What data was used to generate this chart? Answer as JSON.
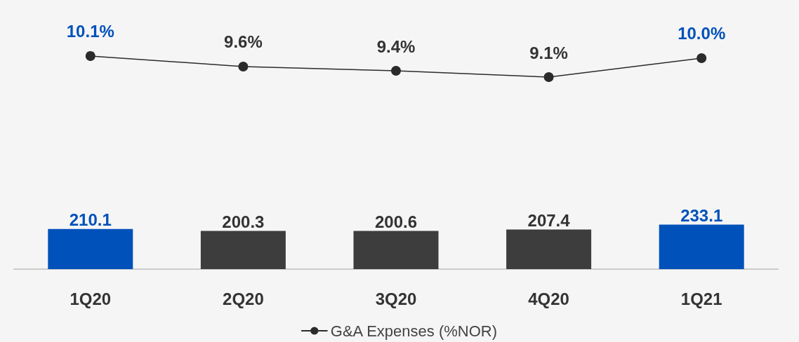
{
  "chart_data": [
    {
      "type": "line",
      "categories": [
        null,
        null,
        null,
        null,
        null
      ],
      "series": [
        {
          "name": "G&A Expenses (%NOR)",
          "color": "#2b2b2b",
          "value_labels": [
            "10.1%",
            "9.6%",
            "9.4%",
            "9.1%",
            "10.0%"
          ],
          "values": [
            10.1,
            9.6,
            9.4,
            9.1,
            10.0
          ]
        }
      ],
      "marker": "circle",
      "legend": "bottom",
      "grid": false
    },
    {
      "type": "bar",
      "categories": [
        "1Q20",
        "2Q20",
        "3Q20",
        "4Q20",
        "1Q21"
      ],
      "series": [
        {
          "colors": [
            "#0051ba",
            "#3d3d3d",
            "#3d3d3d",
            "#3d3d3d",
            "#0051ba"
          ],
          "values": [
            210.1,
            200.3,
            200.6,
            207.4,
            233.1
          ]
        }
      ],
      "data_labels": true,
      "grid": false
    }
  ]
}
